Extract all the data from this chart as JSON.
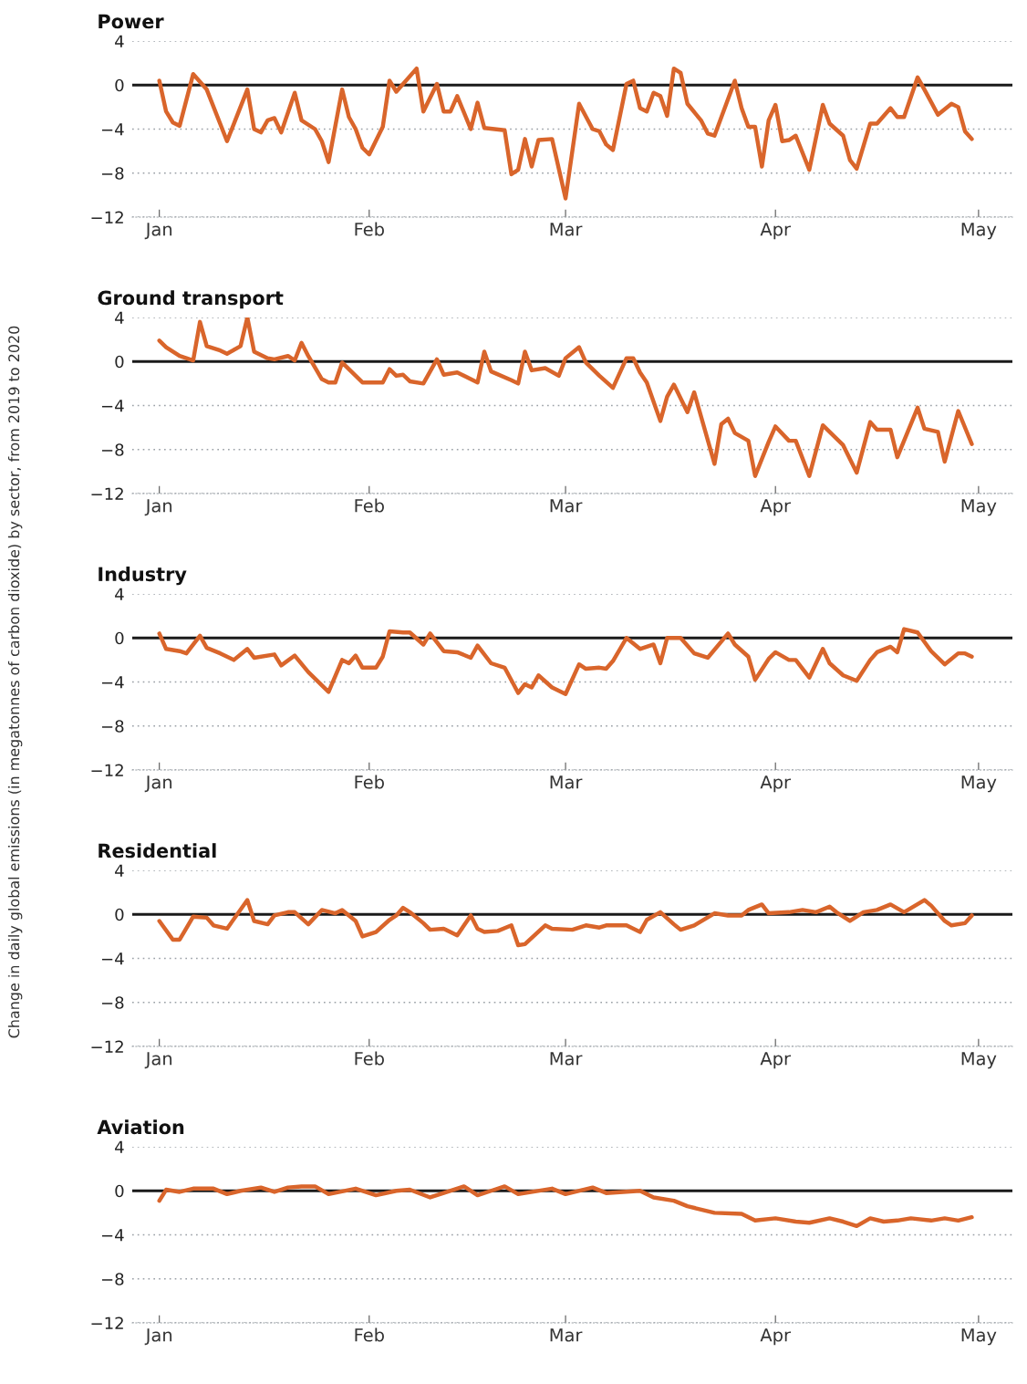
{
  "chart_data": [
    {
      "type": "line",
      "title": "Power",
      "xlim": [
        "2019-12-28",
        "2020-05-06"
      ],
      "ylim": [
        -12,
        4
      ],
      "yticks": [
        4,
        0,
        {
          "value": -4,
          "label": "−4"
        },
        {
          "value": -8,
          "label": "−8"
        },
        {
          "value": -12,
          "label": "−12"
        }
      ],
      "xticks": [
        {
          "value": "2020-01-01",
          "label": "Jan"
        },
        {
          "value": "2020-02-01",
          "label": "Feb"
        },
        {
          "value": "2020-03-01",
          "label": "Mar"
        },
        {
          "value": "2020-04-01",
          "label": "Apr"
        },
        {
          "value": "2020-05-01",
          "label": "May"
        }
      ],
      "grid": "y",
      "ref_lines": [
        {
          "axis": "y",
          "value": 0,
          "color": "#1a1a1a",
          "line_style": "solid"
        }
      ],
      "series": [
        {
          "color": "#d9652b",
          "x": [
            "2020-01-01",
            "2020-01-02",
            "2020-01-03",
            "2020-01-04",
            "2020-01-06",
            "2020-01-08",
            "2020-01-11",
            "2020-01-14",
            "2020-01-15",
            "2020-01-16",
            "2020-01-17",
            "2020-01-18",
            "2020-01-19",
            "2020-01-21",
            "2020-01-22",
            "2020-01-24",
            "2020-01-25",
            "2020-01-26",
            "2020-01-28",
            "2020-01-29",
            "2020-01-30",
            "2020-01-31",
            "2020-02-01",
            "2020-02-03",
            "2020-02-04",
            "2020-02-05",
            "2020-02-08",
            "2020-02-09",
            "2020-02-11",
            "2020-02-12",
            "2020-02-13",
            "2020-02-14",
            "2020-02-16",
            "2020-02-17",
            "2020-02-18",
            "2020-02-21",
            "2020-02-22",
            "2020-02-23",
            "2020-02-24",
            "2020-02-25",
            "2020-02-26",
            "2020-02-28",
            "2020-03-01",
            "2020-03-03",
            "2020-03-05",
            "2020-03-06",
            "2020-03-07",
            "2020-03-08",
            "2020-03-10",
            "2020-03-11",
            "2020-03-12",
            "2020-03-13",
            "2020-03-14",
            "2020-03-15",
            "2020-03-16",
            "2020-03-17",
            "2020-03-18",
            "2020-03-19",
            "2020-03-21",
            "2020-03-22",
            "2020-03-23",
            "2020-03-26",
            "2020-03-27",
            "2020-03-28",
            "2020-03-29",
            "2020-03-30",
            "2020-03-31",
            "2020-04-01",
            "2020-04-02",
            "2020-04-03",
            "2020-04-04",
            "2020-04-06",
            "2020-04-08",
            "2020-04-09",
            "2020-04-11",
            "2020-04-12",
            "2020-04-13",
            "2020-04-15",
            "2020-04-16",
            "2020-04-18",
            "2020-04-19",
            "2020-04-20",
            "2020-04-22",
            "2020-04-23",
            "2020-04-25",
            "2020-04-27",
            "2020-04-28",
            "2020-04-29",
            "2020-04-30"
          ],
          "values": [
            0.4,
            -2.4,
            -3.4,
            -3.7,
            1,
            -0.4,
            -5.1,
            -0.4,
            -4,
            -4.3,
            -3.2,
            -3,
            -4.3,
            -0.7,
            -3.2,
            -4,
            -5.1,
            -7,
            -0.4,
            -2.9,
            -4,
            -5.7,
            -6.3,
            -3.8,
            0.4,
            -0.6,
            1.5,
            -2.4,
            0.1,
            -2.4,
            -2.4,
            -1,
            -4,
            -1.6,
            -3.9,
            -4.1,
            -8.1,
            -7.7,
            -4.9,
            -7.4,
            -5,
            -4.9,
            -10.3,
            -1.7,
            -4,
            -4.2,
            -5.4,
            -5.9,
            0.1,
            0.4,
            -2.1,
            -2.4,
            -0.7,
            -1,
            -2.8,
            1.5,
            1.1,
            -1.7,
            -3.2,
            -4.4,
            -4.6,
            0.4,
            -2.1,
            -3.8,
            -3.8,
            -7.4,
            -3.2,
            -1.8,
            -5.1,
            -5,
            -4.6,
            -7.7,
            -1.8,
            -3.5,
            -4.6,
            -6.8,
            -7.6,
            -3.5,
            -3.5,
            -2.1,
            -2.9,
            -2.9,
            0.7,
            -0.4,
            -2.7,
            -1.7,
            -2,
            -4.2,
            -4.9
          ]
        }
      ]
    },
    {
      "type": "line",
      "title": "Ground transport",
      "xlim": [
        "2019-12-28",
        "2020-05-06"
      ],
      "ylim": [
        -12,
        4
      ],
      "yticks": [
        4,
        0,
        {
          "value": -4,
          "label": "−4"
        },
        {
          "value": -8,
          "label": "−8"
        },
        {
          "value": -12,
          "label": "−12"
        }
      ],
      "xticks": [
        {
          "value": "2020-01-01",
          "label": "Jan"
        },
        {
          "value": "2020-02-01",
          "label": "Feb"
        },
        {
          "value": "2020-03-01",
          "label": "Mar"
        },
        {
          "value": "2020-04-01",
          "label": "Apr"
        },
        {
          "value": "2020-05-01",
          "label": "May"
        }
      ],
      "grid": "y",
      "ref_lines": [
        {
          "axis": "y",
          "value": 0,
          "color": "#1a1a1a",
          "line_style": "solid"
        }
      ],
      "series": [
        {
          "color": "#d9652b",
          "x": [
            "2020-01-01",
            "2020-01-02",
            "2020-01-04",
            "2020-01-06",
            "2020-01-07",
            "2020-01-08",
            "2020-01-10",
            "2020-01-11",
            "2020-01-13",
            "2020-01-14",
            "2020-01-15",
            "2020-01-17",
            "2020-01-18",
            "2020-01-20",
            "2020-01-21",
            "2020-01-22",
            "2020-01-23",
            "2020-01-25",
            "2020-01-26",
            "2020-01-27",
            "2020-01-28",
            "2020-01-30",
            "2020-01-31",
            "2020-02-03",
            "2020-02-04",
            "2020-02-05",
            "2020-02-06",
            "2020-02-07",
            "2020-02-09",
            "2020-02-11",
            "2020-02-12",
            "2020-02-14",
            "2020-02-17",
            "2020-02-18",
            "2020-02-19",
            "2020-02-22",
            "2020-02-23",
            "2020-02-24",
            "2020-02-25",
            "2020-02-27",
            "2020-02-29",
            "2020-03-01",
            "2020-03-03",
            "2020-03-04",
            "2020-03-06",
            "2020-03-08",
            "2020-03-10",
            "2020-03-11",
            "2020-03-12",
            "2020-03-13",
            "2020-03-15",
            "2020-03-16",
            "2020-03-17",
            "2020-03-19",
            "2020-03-20",
            "2020-03-23",
            "2020-03-24",
            "2020-03-25",
            "2020-03-26",
            "2020-03-28",
            "2020-03-29",
            "2020-03-31",
            "2020-04-01",
            "2020-04-03",
            "2020-04-04",
            "2020-04-06",
            "2020-04-08",
            "2020-04-10",
            "2020-04-11",
            "2020-04-13",
            "2020-04-15",
            "2020-04-16",
            "2020-04-18",
            "2020-04-19",
            "2020-04-22",
            "2020-04-23",
            "2020-04-25",
            "2020-04-26",
            "2020-04-28",
            "2020-04-30"
          ],
          "values": [
            1.9,
            1.3,
            0.5,
            0.1,
            3.6,
            1.4,
            1,
            0.7,
            1.4,
            4,
            0.9,
            0.3,
            0.2,
            0.5,
            0.1,
            1.7,
            0.5,
            -1.6,
            -1.9,
            -1.9,
            -0.1,
            -1.3,
            -1.9,
            -1.9,
            -0.7,
            -1.3,
            -1.2,
            -1.8,
            -2,
            0.2,
            -1.2,
            -1,
            -1.9,
            0.9,
            -0.9,
            -1.7,
            -2,
            0.9,
            -0.8,
            -0.6,
            -1.3,
            0.3,
            1.3,
            -0.1,
            -1.3,
            -2.4,
            0.3,
            0.3,
            -1,
            -1.9,
            -5.4,
            -3.2,
            -2.1,
            -4.6,
            -2.8,
            -9.3,
            -5.7,
            -5.2,
            -6.5,
            -7.2,
            -10.4,
            -7.3,
            -5.9,
            -7.2,
            -7.2,
            -10.4,
            -5.8,
            -7,
            -7.6,
            -10.1,
            -5.5,
            -6.2,
            -6.2,
            -8.7,
            -4.2,
            -6.1,
            -6.4,
            -9.1,
            -4.5,
            -7.5
          ]
        }
      ]
    },
    {
      "type": "line",
      "title": "Industry",
      "ylabel": "Change in daily global emissions (in megatonnes of carbon dioxide) by sector, from 2019 to 2020",
      "xlim": [
        "2019-12-28",
        "2020-05-06"
      ],
      "ylim": [
        -12,
        4
      ],
      "yticks": [
        4,
        0,
        {
          "value": -4,
          "label": "−4"
        },
        {
          "value": -8,
          "label": "−8"
        },
        {
          "value": -12,
          "label": "−12"
        }
      ],
      "xticks": [
        {
          "value": "2020-01-01",
          "label": "Jan"
        },
        {
          "value": "2020-02-01",
          "label": "Feb"
        },
        {
          "value": "2020-03-01",
          "label": "Mar"
        },
        {
          "value": "2020-04-01",
          "label": "Apr"
        },
        {
          "value": "2020-05-01",
          "label": "May"
        }
      ],
      "grid": "y",
      "ref_lines": [
        {
          "axis": "y",
          "value": 0,
          "color": "#1a1a1a",
          "line_style": "solid"
        }
      ],
      "series": [
        {
          "color": "#d9652b",
          "x": [
            "2020-01-01",
            "2020-01-02",
            "2020-01-04",
            "2020-01-05",
            "2020-01-07",
            "2020-01-08",
            "2020-01-10",
            "2020-01-12",
            "2020-01-14",
            "2020-01-15",
            "2020-01-18",
            "2020-01-19",
            "2020-01-21",
            "2020-01-23",
            "2020-01-26",
            "2020-01-28",
            "2020-01-29",
            "2020-01-30",
            "2020-01-31",
            "2020-02-02",
            "2020-02-03",
            "2020-02-04",
            "2020-02-06",
            "2020-02-07",
            "2020-02-09",
            "2020-02-10",
            "2020-02-12",
            "2020-02-14",
            "2020-02-16",
            "2020-02-17",
            "2020-02-19",
            "2020-02-21",
            "2020-02-23",
            "2020-02-24",
            "2020-02-25",
            "2020-02-26",
            "2020-02-28",
            "2020-03-01",
            "2020-03-03",
            "2020-03-04",
            "2020-03-06",
            "2020-03-07",
            "2020-03-08",
            "2020-03-10",
            "2020-03-12",
            "2020-03-14",
            "2020-03-15",
            "2020-03-16",
            "2020-03-18",
            "2020-03-20",
            "2020-03-22",
            "2020-03-25",
            "2020-03-26",
            "2020-03-28",
            "2020-03-29",
            "2020-03-31",
            "2020-04-01",
            "2020-04-03",
            "2020-04-04",
            "2020-04-06",
            "2020-04-08",
            "2020-04-09",
            "2020-04-11",
            "2020-04-13",
            "2020-04-15",
            "2020-04-16",
            "2020-04-18",
            "2020-04-19",
            "2020-04-20",
            "2020-04-22",
            "2020-04-24",
            "2020-04-26",
            "2020-04-28",
            "2020-04-29",
            "2020-04-30"
          ],
          "values": [
            0.4,
            -1,
            -1.2,
            -1.4,
            0.2,
            -0.9,
            -1.4,
            -2,
            -1,
            -1.8,
            -1.5,
            -2.5,
            -1.6,
            -3.1,
            -4.9,
            -2,
            -2.3,
            -1.6,
            -2.7,
            -2.7,
            -1.7,
            0.6,
            0.5,
            0.5,
            -0.6,
            0.4,
            -1.2,
            -1.3,
            -1.8,
            -0.7,
            -2.3,
            -2.7,
            -5,
            -4.2,
            -4.5,
            -3.4,
            -4.5,
            -5.1,
            -2.4,
            -2.8,
            -2.7,
            -2.8,
            -2.1,
            0,
            -1,
            -0.6,
            -2.3,
            0,
            0,
            -1.4,
            -1.8,
            0.4,
            -0.6,
            -1.7,
            -3.8,
            -1.9,
            -1.3,
            -2,
            -2,
            -3.6,
            -1,
            -2.3,
            -3.4,
            -3.9,
            -2,
            -1.3,
            -0.8,
            -1.3,
            0.8,
            0.5,
            -1.2,
            -2.4,
            -1.4,
            -1.4,
            -1.7
          ]
        }
      ]
    },
    {
      "type": "line",
      "title": "Residential",
      "xlim": [
        "2019-12-28",
        "2020-05-06"
      ],
      "ylim": [
        -12,
        4
      ],
      "yticks": [
        4,
        0,
        {
          "value": -4,
          "label": "−4"
        },
        {
          "value": -8,
          "label": "−8"
        },
        {
          "value": -12,
          "label": "−12"
        }
      ],
      "xticks": [
        {
          "value": "2020-01-01",
          "label": "Jan"
        },
        {
          "value": "2020-02-01",
          "label": "Feb"
        },
        {
          "value": "2020-03-01",
          "label": "Mar"
        },
        {
          "value": "2020-04-01",
          "label": "Apr"
        },
        {
          "value": "2020-05-01",
          "label": "May"
        }
      ],
      "grid": "y",
      "ref_lines": [
        {
          "axis": "y",
          "value": 0,
          "color": "#1a1a1a",
          "line_style": "solid"
        }
      ],
      "series": [
        {
          "color": "#d9652b",
          "x": [
            "2020-01-01",
            "2020-01-03",
            "2020-01-04",
            "2020-01-06",
            "2020-01-08",
            "2020-01-09",
            "2020-01-11",
            "2020-01-14",
            "2020-01-15",
            "2020-01-17",
            "2020-01-18",
            "2020-01-20",
            "2020-01-21",
            "2020-01-23",
            "2020-01-25",
            "2020-01-27",
            "2020-01-28",
            "2020-01-30",
            "2020-01-31",
            "2020-02-02",
            "2020-02-04",
            "2020-02-05",
            "2020-02-06",
            "2020-02-07",
            "2020-02-09",
            "2020-02-10",
            "2020-02-12",
            "2020-02-14",
            "2020-02-16",
            "2020-02-17",
            "2020-02-18",
            "2020-02-20",
            "2020-02-22",
            "2020-02-23",
            "2020-02-24",
            "2020-02-27",
            "2020-02-28",
            "2020-03-02",
            "2020-03-04",
            "2020-03-06",
            "2020-03-07",
            "2020-03-10",
            "2020-03-12",
            "2020-03-13",
            "2020-03-15",
            "2020-03-17",
            "2020-03-18",
            "2020-03-20",
            "2020-03-23",
            "2020-03-25",
            "2020-03-27",
            "2020-03-28",
            "2020-03-30",
            "2020-03-31",
            "2020-04-03",
            "2020-04-05",
            "2020-04-07",
            "2020-04-09",
            "2020-04-10",
            "2020-04-12",
            "2020-04-14",
            "2020-04-16",
            "2020-04-18",
            "2020-04-20",
            "2020-04-23",
            "2020-04-24",
            "2020-04-26",
            "2020-04-27",
            "2020-04-29",
            "2020-04-30"
          ],
          "values": [
            -0.6,
            -2.3,
            -2.3,
            -0.2,
            -0.3,
            -1,
            -1.3,
            1.3,
            -0.6,
            -0.9,
            -0.1,
            0.2,
            0.2,
            -0.9,
            0.4,
            0.1,
            0.4,
            -0.6,
            -2,
            -1.6,
            -0.5,
            -0.1,
            0.6,
            0.2,
            -0.8,
            -1.4,
            -1.3,
            -1.9,
            -0.1,
            -1.3,
            -1.6,
            -1.5,
            -1,
            -2.8,
            -2.7,
            -1,
            -1.3,
            -1.4,
            -1,
            -1.2,
            -1,
            -1,
            -1.6,
            -0.5,
            0.2,
            -0.9,
            -1.4,
            -1,
            0.1,
            -0.1,
            -0.1,
            0.4,
            0.9,
            0.1,
            0.2,
            0.4,
            0.2,
            0.7,
            0.2,
            -0.6,
            0.2,
            0.4,
            0.9,
            0.2,
            1.3,
            0.8,
            -0.6,
            -1,
            -0.8,
            -0.1
          ]
        }
      ]
    },
    {
      "type": "line",
      "title": "Aviation",
      "xlim": [
        "2019-12-28",
        "2020-05-06"
      ],
      "ylim": [
        -12,
        4
      ],
      "yticks": [
        4,
        0,
        {
          "value": -4,
          "label": "−4"
        },
        {
          "value": -8,
          "label": "−8"
        },
        {
          "value": -12,
          "label": "−12"
        }
      ],
      "xticks": [
        {
          "value": "2020-01-01",
          "label": "Jan"
        },
        {
          "value": "2020-02-01",
          "label": "Feb"
        },
        {
          "value": "2020-03-01",
          "label": "Mar"
        },
        {
          "value": "2020-04-01",
          "label": "Apr"
        },
        {
          "value": "2020-05-01",
          "label": "May"
        }
      ],
      "grid": "y",
      "ref_lines": [
        {
          "axis": "y",
          "value": 0,
          "color": "#1a1a1a",
          "line_style": "solid"
        }
      ],
      "series": [
        {
          "color": "#d9652b",
          "x": [
            "2020-01-01",
            "2020-01-02",
            "2020-01-04",
            "2020-01-06",
            "2020-01-09",
            "2020-01-11",
            "2020-01-13",
            "2020-01-16",
            "2020-01-18",
            "2020-01-20",
            "2020-01-22",
            "2020-01-24",
            "2020-01-26",
            "2020-01-30",
            "2020-02-02",
            "2020-02-05",
            "2020-02-07",
            "2020-02-10",
            "2020-02-12",
            "2020-02-15",
            "2020-02-17",
            "2020-02-19",
            "2020-02-21",
            "2020-02-23",
            "2020-02-28",
            "2020-03-01",
            "2020-03-05",
            "2020-03-07",
            "2020-03-12",
            "2020-03-14",
            "2020-03-17",
            "2020-03-19",
            "2020-03-23",
            "2020-03-27",
            "2020-03-29",
            "2020-04-01",
            "2020-04-04",
            "2020-04-06",
            "2020-04-09",
            "2020-04-11",
            "2020-04-13",
            "2020-04-15",
            "2020-04-17",
            "2020-04-19",
            "2020-04-21",
            "2020-04-24",
            "2020-04-26",
            "2020-04-28",
            "2020-04-30"
          ],
          "values": [
            -0.9,
            0.1,
            -0.1,
            0.2,
            0.2,
            -0.3,
            0,
            0.3,
            -0.1,
            0.3,
            0.4,
            0.4,
            -0.3,
            0.2,
            -0.4,
            0,
            0.1,
            -0.6,
            -0.2,
            0.4,
            -0.4,
            0,
            0.4,
            -0.3,
            0.2,
            -0.3,
            0.3,
            -0.2,
            0,
            -0.6,
            -0.9,
            -1.4,
            -2,
            -2.1,
            -2.7,
            -2.5,
            -2.8,
            -2.9,
            -2.5,
            -2.8,
            -3.2,
            -2.5,
            -2.8,
            -2.7,
            -2.5,
            -2.7,
            -2.5,
            -2.7,
            -2.4
          ]
        }
      ]
    }
  ]
}
